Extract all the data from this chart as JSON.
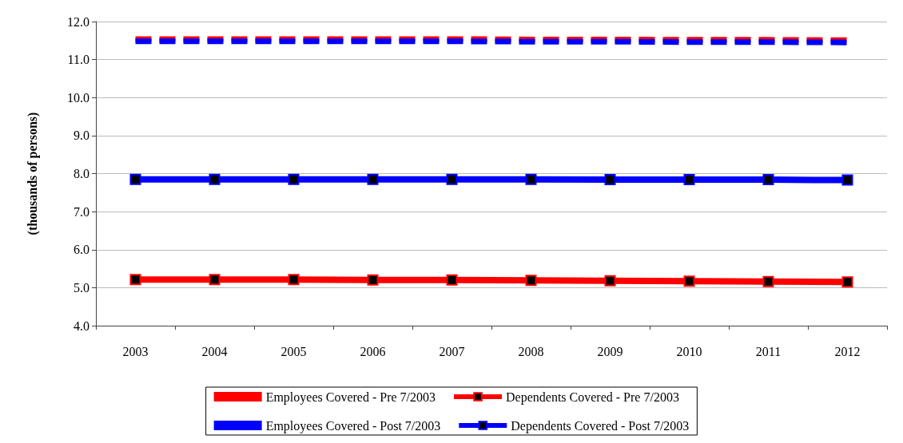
{
  "chart_data": {
    "type": "line",
    "ylabel": "(thousands of persons)",
    "categories": [
      "2003",
      "2004",
      "2005",
      "2006",
      "2007",
      "2008",
      "2009",
      "2010",
      "2011",
      "2012"
    ],
    "series": [
      {
        "name": "Employees Covered - Pre 7/2003",
        "color": "#ff0000",
        "line_style": "dashed",
        "marker": "none",
        "values": [
          11.54,
          11.54,
          11.54,
          11.54,
          11.54,
          11.53,
          11.53,
          11.52,
          11.52,
          11.51
        ]
      },
      {
        "name": "Dependents Covered - Pre 7/2003",
        "color": "#ff0000",
        "line_style": "solid",
        "marker": "square",
        "values": [
          5.21,
          5.21,
          5.21,
          5.2,
          5.2,
          5.19,
          5.18,
          5.17,
          5.16,
          5.15
        ]
      },
      {
        "name": "Employees Covered - Post 7/2003",
        "color": "#0000ff",
        "line_style": "dashed",
        "marker": "none",
        "values": [
          11.48,
          11.48,
          11.48,
          11.48,
          11.48,
          11.47,
          11.47,
          11.46,
          11.46,
          11.45
        ]
      },
      {
        "name": "Dependents Covered - Post 7/2003",
        "color": "#0000ff",
        "line_style": "solid",
        "marker": "square",
        "values": [
          7.85,
          7.85,
          7.85,
          7.85,
          7.85,
          7.85,
          7.84,
          7.84,
          7.84,
          7.83
        ]
      }
    ],
    "ylim": [
      4,
      12
    ],
    "yticks": [
      {
        "value": 4,
        "label": "4.0"
      },
      {
        "value": 5,
        "label": "5.0"
      },
      {
        "value": 6,
        "label": "6.0"
      },
      {
        "value": 7,
        "label": "7.0"
      },
      {
        "value": 8,
        "label": "8.0"
      },
      {
        "value": 9,
        "label": "9.0"
      },
      {
        "value": 10,
        "label": "10.0"
      },
      {
        "value": 11,
        "label": "11.0"
      },
      {
        "value": 12,
        "label": "12.0"
      }
    ],
    "grid": "y",
    "legend": "bottom"
  }
}
